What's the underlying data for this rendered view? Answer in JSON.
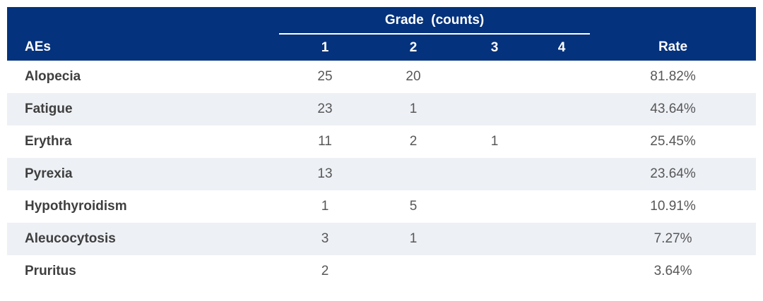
{
  "colors": {
    "header_bg": "#04327c",
    "header_text": "#ffffff",
    "alt_row_bg": "#edf0f5",
    "label_text": "#3f3f3f",
    "value_text": "#575757"
  },
  "table": {
    "grade_group_header": "Grade  (counts)",
    "columns": {
      "aes": "AEs",
      "grades": [
        "1",
        "2",
        "3",
        "4"
      ],
      "rate": "Rate"
    },
    "rows": [
      {
        "name": "Alopecia",
        "g1": "25",
        "g2": "20",
        "g3": "",
        "g4": "",
        "rate": "81.82%"
      },
      {
        "name": "Fatigue",
        "g1": "23",
        "g2": "1",
        "g3": "",
        "g4": "",
        "rate": "43.64%"
      },
      {
        "name": "Erythra",
        "g1": "11",
        "g2": "2",
        "g3": "1",
        "g4": "",
        "rate": "25.45%"
      },
      {
        "name": "Pyrexia",
        "g1": "13",
        "g2": "",
        "g3": "",
        "g4": "",
        "rate": "23.64%"
      },
      {
        "name": "Hypothyroidism",
        "g1": "1",
        "g2": "5",
        "g3": "",
        "g4": "",
        "rate": "10.91%"
      },
      {
        "name": "Aleucocytosis",
        "g1": "3",
        "g2": "1",
        "g3": "",
        "g4": "",
        "rate": "7.27%"
      },
      {
        "name": "Pruritus",
        "g1": "2",
        "g2": "",
        "g3": "",
        "g4": "",
        "rate": "3.64%"
      }
    ]
  },
  "chart_data": {
    "type": "table",
    "columns": [
      "AEs",
      "Grade 1 (counts)",
      "Grade 2 (counts)",
      "Grade 3 (counts)",
      "Grade 4 (counts)",
      "Rate"
    ],
    "rows": [
      [
        "Alopecia",
        25,
        20,
        null,
        null,
        "81.82%"
      ],
      [
        "Fatigue",
        23,
        1,
        null,
        null,
        "43.64%"
      ],
      [
        "Erythra",
        11,
        2,
        1,
        null,
        "25.45%"
      ],
      [
        "Pyrexia",
        13,
        null,
        null,
        null,
        "23.64%"
      ],
      [
        "Hypothyroidism",
        1,
        5,
        null,
        null,
        "10.91%"
      ],
      [
        "Aleucocytosis",
        3,
        1,
        null,
        null,
        "7.27%"
      ],
      [
        "Pruritus",
        2,
        null,
        null,
        null,
        "3.64%"
      ]
    ]
  }
}
